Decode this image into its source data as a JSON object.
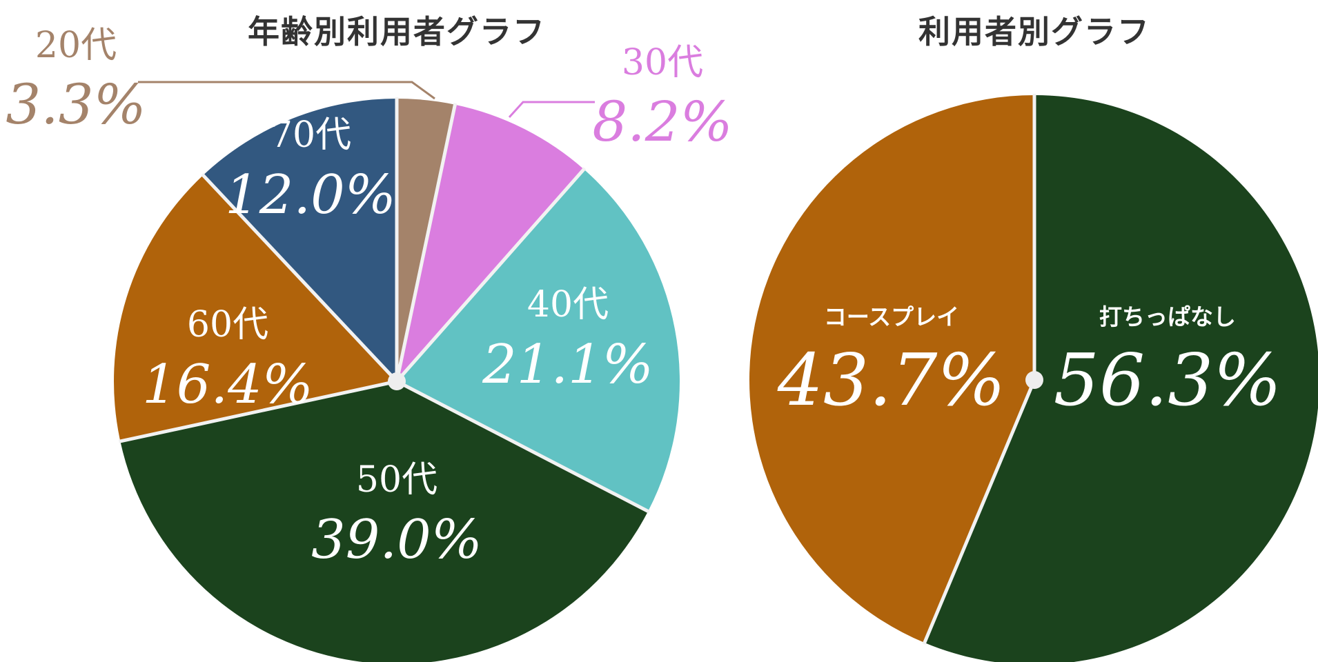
{
  "chart_data": [
    {
      "type": "pie",
      "title": "年齢別利用者グラフ",
      "unit": "%",
      "slices": [
        {
          "label": "20代",
          "value": 3.3,
          "display": "3.3%",
          "color": "#a4836a",
          "label_color": "#a4836a",
          "label_position": "outside"
        },
        {
          "label": "30代",
          "value": 8.2,
          "display": "8.2%",
          "color": "#da7ddf",
          "label_color": "#da7ddf",
          "label_position": "outside"
        },
        {
          "label": "40代",
          "value": 21.1,
          "display": "21.1%",
          "color": "#61c2c3",
          "label_color": "#ffffff",
          "label_position": "inside"
        },
        {
          "label": "50代",
          "value": 39.0,
          "display": "39.0%",
          "color": "#1b431d",
          "label_color": "#ffffff",
          "label_position": "inside"
        },
        {
          "label": "60代",
          "value": 16.4,
          "display": "16.4%",
          "color": "#b0630b",
          "label_color": "#ffffff",
          "label_position": "inside"
        },
        {
          "label": "70代",
          "value": 12.0,
          "display": "12.0%",
          "color": "#325880",
          "label_color": "#ffffff",
          "label_position": "inside"
        }
      ]
    },
    {
      "type": "pie",
      "title": "利用者別グラフ",
      "unit": "%",
      "slices": [
        {
          "label": "打ちっぱなし",
          "value": 56.3,
          "display": "56.3%",
          "color": "#1b431d",
          "label_color": "#ffffff",
          "label_position": "inside"
        },
        {
          "label": "コースプレイ",
          "value": 43.7,
          "display": "43.7%",
          "color": "#b0630b",
          "label_color": "#ffffff",
          "label_position": "inside"
        }
      ]
    }
  ],
  "colors": {
    "separator": "#f2f2f2",
    "center_dot": "#eeeeee",
    "title_text": "#333333"
  }
}
